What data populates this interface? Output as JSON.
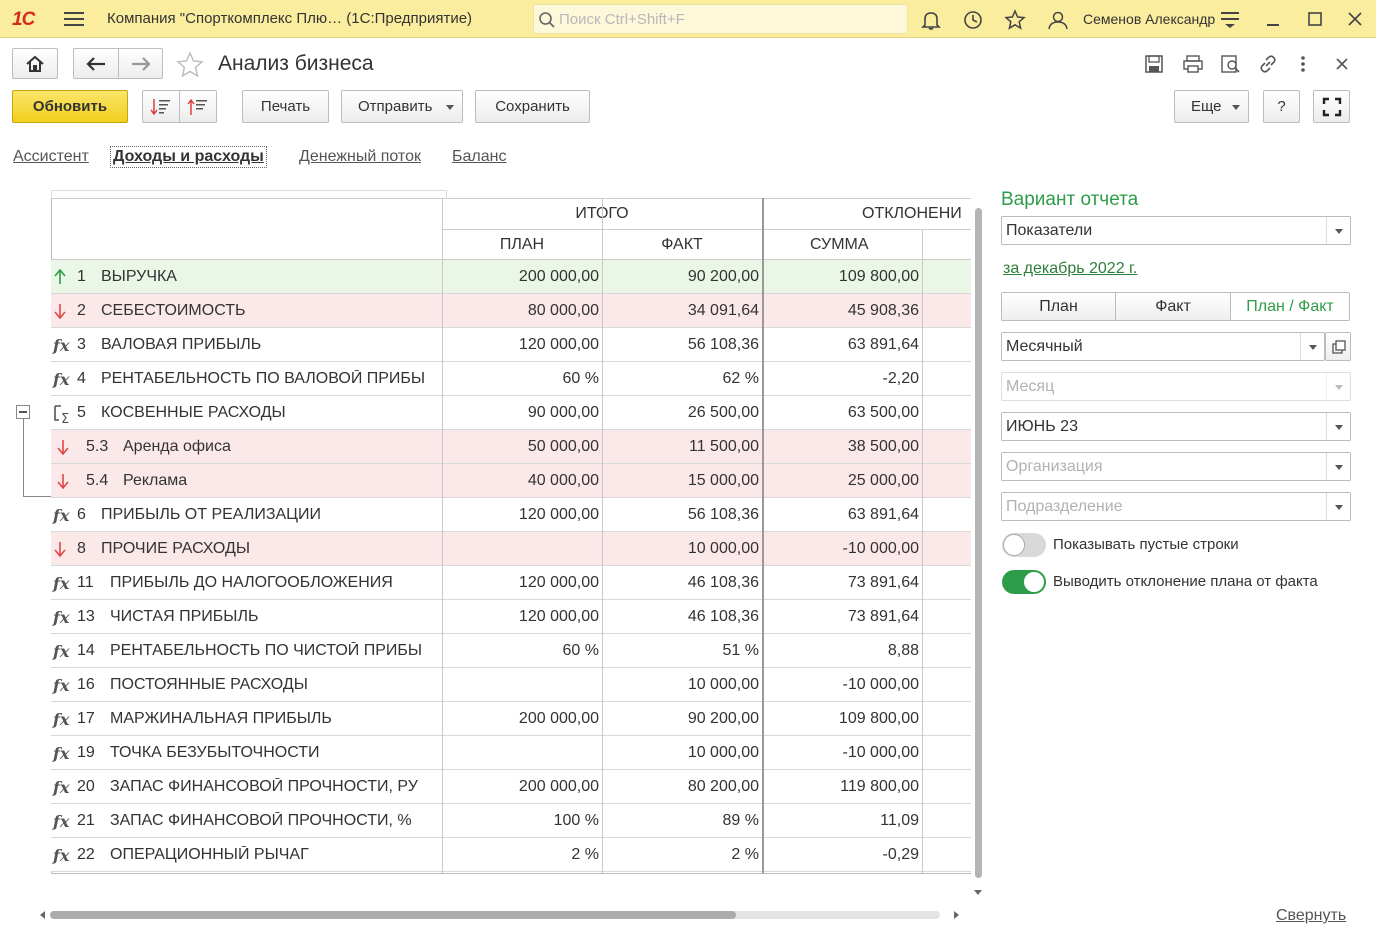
{
  "app": {
    "logo": "1С",
    "window_title": "Компания \"Спорткомплекс Плю…  (1С:Предприятие)",
    "search_placeholder": "Поиск Ctrl+Shift+F",
    "user": "Семенов Александр"
  },
  "form": {
    "title": "Анализ бизнеса",
    "buttons": {
      "refresh": "Обновить",
      "print": "Печать",
      "send": "Отправить",
      "save": "Сохранить",
      "more": "Еще",
      "help": "?"
    }
  },
  "tabs": [
    "Ассистент",
    "Доходы и расходы",
    "Денежный поток",
    "Баланс"
  ],
  "active_tab": "Доходы и расходы",
  "table": {
    "group_headers": {
      "total": "ИТОГО",
      "deviation": "ОТКЛОНЕНИ"
    },
    "columns": {
      "plan": "ПЛАН",
      "fact": "ФАКТ",
      "sum": "СУММА"
    },
    "rows": [
      {
        "icon": "arrow-up-icon",
        "num": "1",
        "name": "ВЫРУЧКА",
        "plan": "200 000,00",
        "fact": "90 200,00",
        "sum": "109 800,00",
        "bg": "#eaf6e6"
      },
      {
        "icon": "arrow-down-icon",
        "num": "2",
        "name": "СЕБЕСТОИМОСТЬ",
        "plan": "80 000,00",
        "fact": "34 091,64",
        "sum": "45 908,36",
        "bg": "#fbe9ea"
      },
      {
        "icon": "fx-icon",
        "num": "3",
        "name": "ВАЛОВАЯ ПРИБЫЛЬ",
        "plan": "120 000,00",
        "fact": "56 108,36",
        "sum": "63 891,64",
        "bg": "#ffffff"
      },
      {
        "icon": "fx-icon",
        "num": "4",
        "name": "РЕНТАБЕЛЬНОСТЬ ПО ВАЛОВОЙ ПРИБЫ",
        "plan": "60 %",
        "fact": "62 %",
        "sum": "-2,20",
        "bg": "#ffffff"
      },
      {
        "icon": "group-sum-icon",
        "num": "5",
        "name": "КОСВЕННЫЕ РАСХОДЫ",
        "plan": "90 000,00",
        "fact": "26 500,00",
        "sum": "63 500,00",
        "bg": "#ffffff"
      },
      {
        "icon": "arrow-down-icon",
        "num": "5.3",
        "name": "Аренда офиса",
        "plan": "50 000,00",
        "fact": "11 500,00",
        "sum": "38 500,00",
        "bg": "#fbe9ea",
        "child": true
      },
      {
        "icon": "arrow-down-icon",
        "num": "5.4",
        "name": "Реклама",
        "plan": "40 000,00",
        "fact": "15 000,00",
        "sum": "25 000,00",
        "bg": "#fbe9ea",
        "child": true
      },
      {
        "icon": "fx-icon",
        "num": "6",
        "name": "ПРИБЫЛЬ ОТ РЕАЛИЗАЦИИ",
        "plan": "120 000,00",
        "fact": "56 108,36",
        "sum": "63 891,64",
        "bg": "#ffffff"
      },
      {
        "icon": "arrow-down-icon",
        "num": "8",
        "name": "ПРОЧИЕ РАСХОДЫ",
        "plan": "",
        "fact": "10 000,00",
        "sum": "-10 000,00",
        "bg": "#fbe9ea"
      },
      {
        "icon": "fx-icon",
        "num": "11",
        "name": "ПРИБЫЛЬ ДО НАЛОГООБЛОЖЕНИЯ",
        "plan": "120 000,00",
        "fact": "46 108,36",
        "sum": "73 891,64",
        "bg": "#ffffff"
      },
      {
        "icon": "fx-icon",
        "num": "13",
        "name": "ЧИСТАЯ ПРИБЫЛЬ",
        "plan": "120 000,00",
        "fact": "46 108,36",
        "sum": "73 891,64",
        "bg": "#ffffff"
      },
      {
        "icon": "fx-icon",
        "num": "14",
        "name": "РЕНТАБЕЛЬНОСТЬ ПО ЧИСТОЙ ПРИБЫ",
        "plan": "60 %",
        "fact": "51 %",
        "sum": "8,88",
        "bg": "#ffffff"
      },
      {
        "icon": "fx-icon",
        "num": "16",
        "name": "ПОСТОЯННЫЕ РАСХОДЫ",
        "plan": "",
        "fact": "10 000,00",
        "sum": "-10 000,00",
        "bg": "#ffffff"
      },
      {
        "icon": "fx-icon",
        "num": "17",
        "name": "МАРЖИНАЛЬНАЯ ПРИБЫЛЬ",
        "plan": "200 000,00",
        "fact": "90 200,00",
        "sum": "109 800,00",
        "bg": "#ffffff"
      },
      {
        "icon": "fx-icon",
        "num": "19",
        "name": "ТОЧКА БЕЗУБЫТОЧНОСТИ",
        "plan": "",
        "fact": "10 000,00",
        "sum": "-10 000,00",
        "bg": "#ffffff"
      },
      {
        "icon": "fx-icon",
        "num": "20",
        "name": "ЗАПАС ФИНАНСОВОЙ ПРОЧНОСТИ, РУ",
        "plan": "200 000,00",
        "fact": "80 200,00",
        "sum": "119 800,00",
        "bg": "#ffffff"
      },
      {
        "icon": "fx-icon",
        "num": "21",
        "name": "ЗАПАС ФИНАНСОВОЙ ПРОЧНОСТИ, %",
        "plan": "100 %",
        "fact": "89 %",
        "sum": "11,09",
        "bg": "#ffffff"
      },
      {
        "icon": "fx-icon",
        "num": "22",
        "name": "ОПЕРАЦИОННЫЙ РЫЧАГ",
        "plan": "2 %",
        "fact": "2 %",
        "sum": "-0,29",
        "bg": "#ffffff"
      }
    ]
  },
  "panel": {
    "title": "Вариант отчета",
    "variant": "Показатели",
    "period_link": "за декабрь 2022 г.",
    "segments": [
      "План",
      "Факт",
      "План / Факт"
    ],
    "active_segment": "План / Факт",
    "periodicity": "Месячный",
    "month_placeholder": "Месяц",
    "month_value": "ИЮНЬ 23",
    "org_placeholder": "Организация",
    "dept_placeholder": "Подразделение",
    "toggle_empty_label": "Показывать пустые строки",
    "toggle_empty_on": false,
    "toggle_deviation_label": "Выводить отклонение плана от факта",
    "toggle_deviation_on": true,
    "collapse_link": "Свернуть"
  },
  "colors": {
    "accent_green": "#2e9c49",
    "refresh_yellow": "#f6d83c",
    "up_arrow": "#2e9c49",
    "down_arrow": "#e04848"
  }
}
